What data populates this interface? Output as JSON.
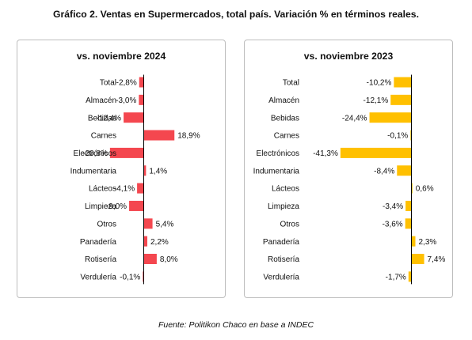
{
  "title": "Gráfico 2. Ventas en Supermercados, total país. Variación % en términos reales.",
  "source": "Fuente: Politikon Chaco en base a INDEC",
  "colors": {
    "series1": "#f4474f",
    "series2": "#ffc000",
    "axis": "#000000"
  },
  "chart_data": [
    {
      "type": "bar",
      "orientation": "horizontal",
      "title": "vs. noviembre 2024",
      "categories": [
        "Total",
        "Almacén",
        "Bebidas",
        "Carnes",
        "Electrónicos",
        "Indumentaria",
        "Lácteos",
        "Limpieza",
        "Otros",
        "Panadería",
        "Rotisería",
        "Verdulería"
      ],
      "values": [
        -2.8,
        -3.0,
        -12.4,
        18.9,
        -20.8,
        1.4,
        -4.1,
        -9.0,
        5.4,
        2.2,
        8.0,
        -0.1
      ],
      "value_labels": [
        "-2,8%",
        "-3,0%",
        "-12,4%",
        "18,9%",
        "-20,8%",
        "1,4%",
        "-4,1%",
        "-9,0%",
        "5,4%",
        "2,2%",
        "8,0%",
        "-0,1%"
      ],
      "xlim": [
        -25,
        25
      ],
      "grid": false
    },
    {
      "type": "bar",
      "orientation": "horizontal",
      "title": "vs. noviembre 2023",
      "categories": [
        "Total",
        "Almacén",
        "Bebidas",
        "Carnes",
        "Electrónicos",
        "Indumentaria",
        "Lácteos",
        "Limpieza",
        "Otros",
        "Panadería",
        "Rotisería",
        "Verdulería"
      ],
      "values": [
        -10.2,
        -12.1,
        -24.4,
        -0.1,
        -41.3,
        -8.4,
        0.6,
        -3.4,
        -3.6,
        2.3,
        7.4,
        -1.7
      ],
      "value_labels": [
        "-10,2%",
        "-12,1%",
        "-24,4%",
        "-0,1%",
        "-41,3%",
        "-8,4%",
        "0,6%",
        "-3,4%",
        "-3,6%",
        "2,3%",
        "7,4%",
        "-1,7%"
      ],
      "xlim": [
        -45,
        45
      ],
      "grid": false
    }
  ]
}
